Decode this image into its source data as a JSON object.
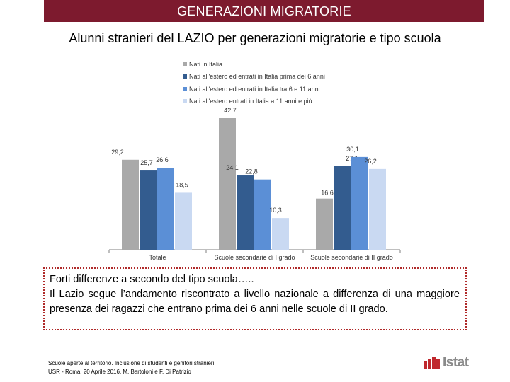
{
  "header": {
    "title": "GENERAZIONI MIGRATORIE"
  },
  "chart_data": {
    "type": "bar",
    "title": "Alunni stranieri del LAZIO per generazioni migratorie e tipo scuola",
    "categories": [
      "Totale",
      "Scuole secondarie di I grado",
      "Scuole secondarie di II grado"
    ],
    "series": [
      {
        "name": "Nati in Italia",
        "color": "#a9a9a9",
        "values": [
          29.2,
          42.7,
          16.6
        ],
        "labels": [
          "29,2",
          "42,7",
          "16,6"
        ]
      },
      {
        "name": "Nati all'estero ed entrati in Italia prima dei 6 anni",
        "color": "#335c8f",
        "values": [
          25.7,
          24.1,
          27.1
        ],
        "labels": [
          "25,7",
          "24,1",
          "27,1"
        ]
      },
      {
        "name": "Nati all'estero ed entrati in Italia tra 6 e 11 anni",
        "color": "#5b8fd6",
        "values": [
          26.6,
          22.8,
          30.1
        ],
        "labels": [
          "26,6",
          "22,8",
          "30,1"
        ]
      },
      {
        "name": "Nati all'estero entrati in Italia a 11 anni e più",
        "color": "#c9d9f2",
        "values": [
          18.5,
          10.3,
          26.2
        ],
        "labels": [
          "18,5",
          "10,3",
          "26,2"
        ]
      }
    ],
    "ylim": [
      0,
      45
    ],
    "xlabel": "",
    "ylabel": "",
    "legend_position": "top"
  },
  "note": {
    "line1": "Forti differenze a secondo del tipo scuola…..",
    "line2": "Il Lazio segue l’andamento riscontrato a livello nazionale a differenza di una maggiore presenza dei ragazzi che entrano prima dei 6 anni nelle scuole di II grado."
  },
  "footer": {
    "line1": "Scuole aperte al territorio. Inclusione di studenti e genitori stranieri",
    "line2": "USR - Roma, 20 Aprile 2016, M. Bartoloni e F. Di Patrizio"
  },
  "logo": {
    "text": "Istat",
    "color": "#c0272d"
  }
}
